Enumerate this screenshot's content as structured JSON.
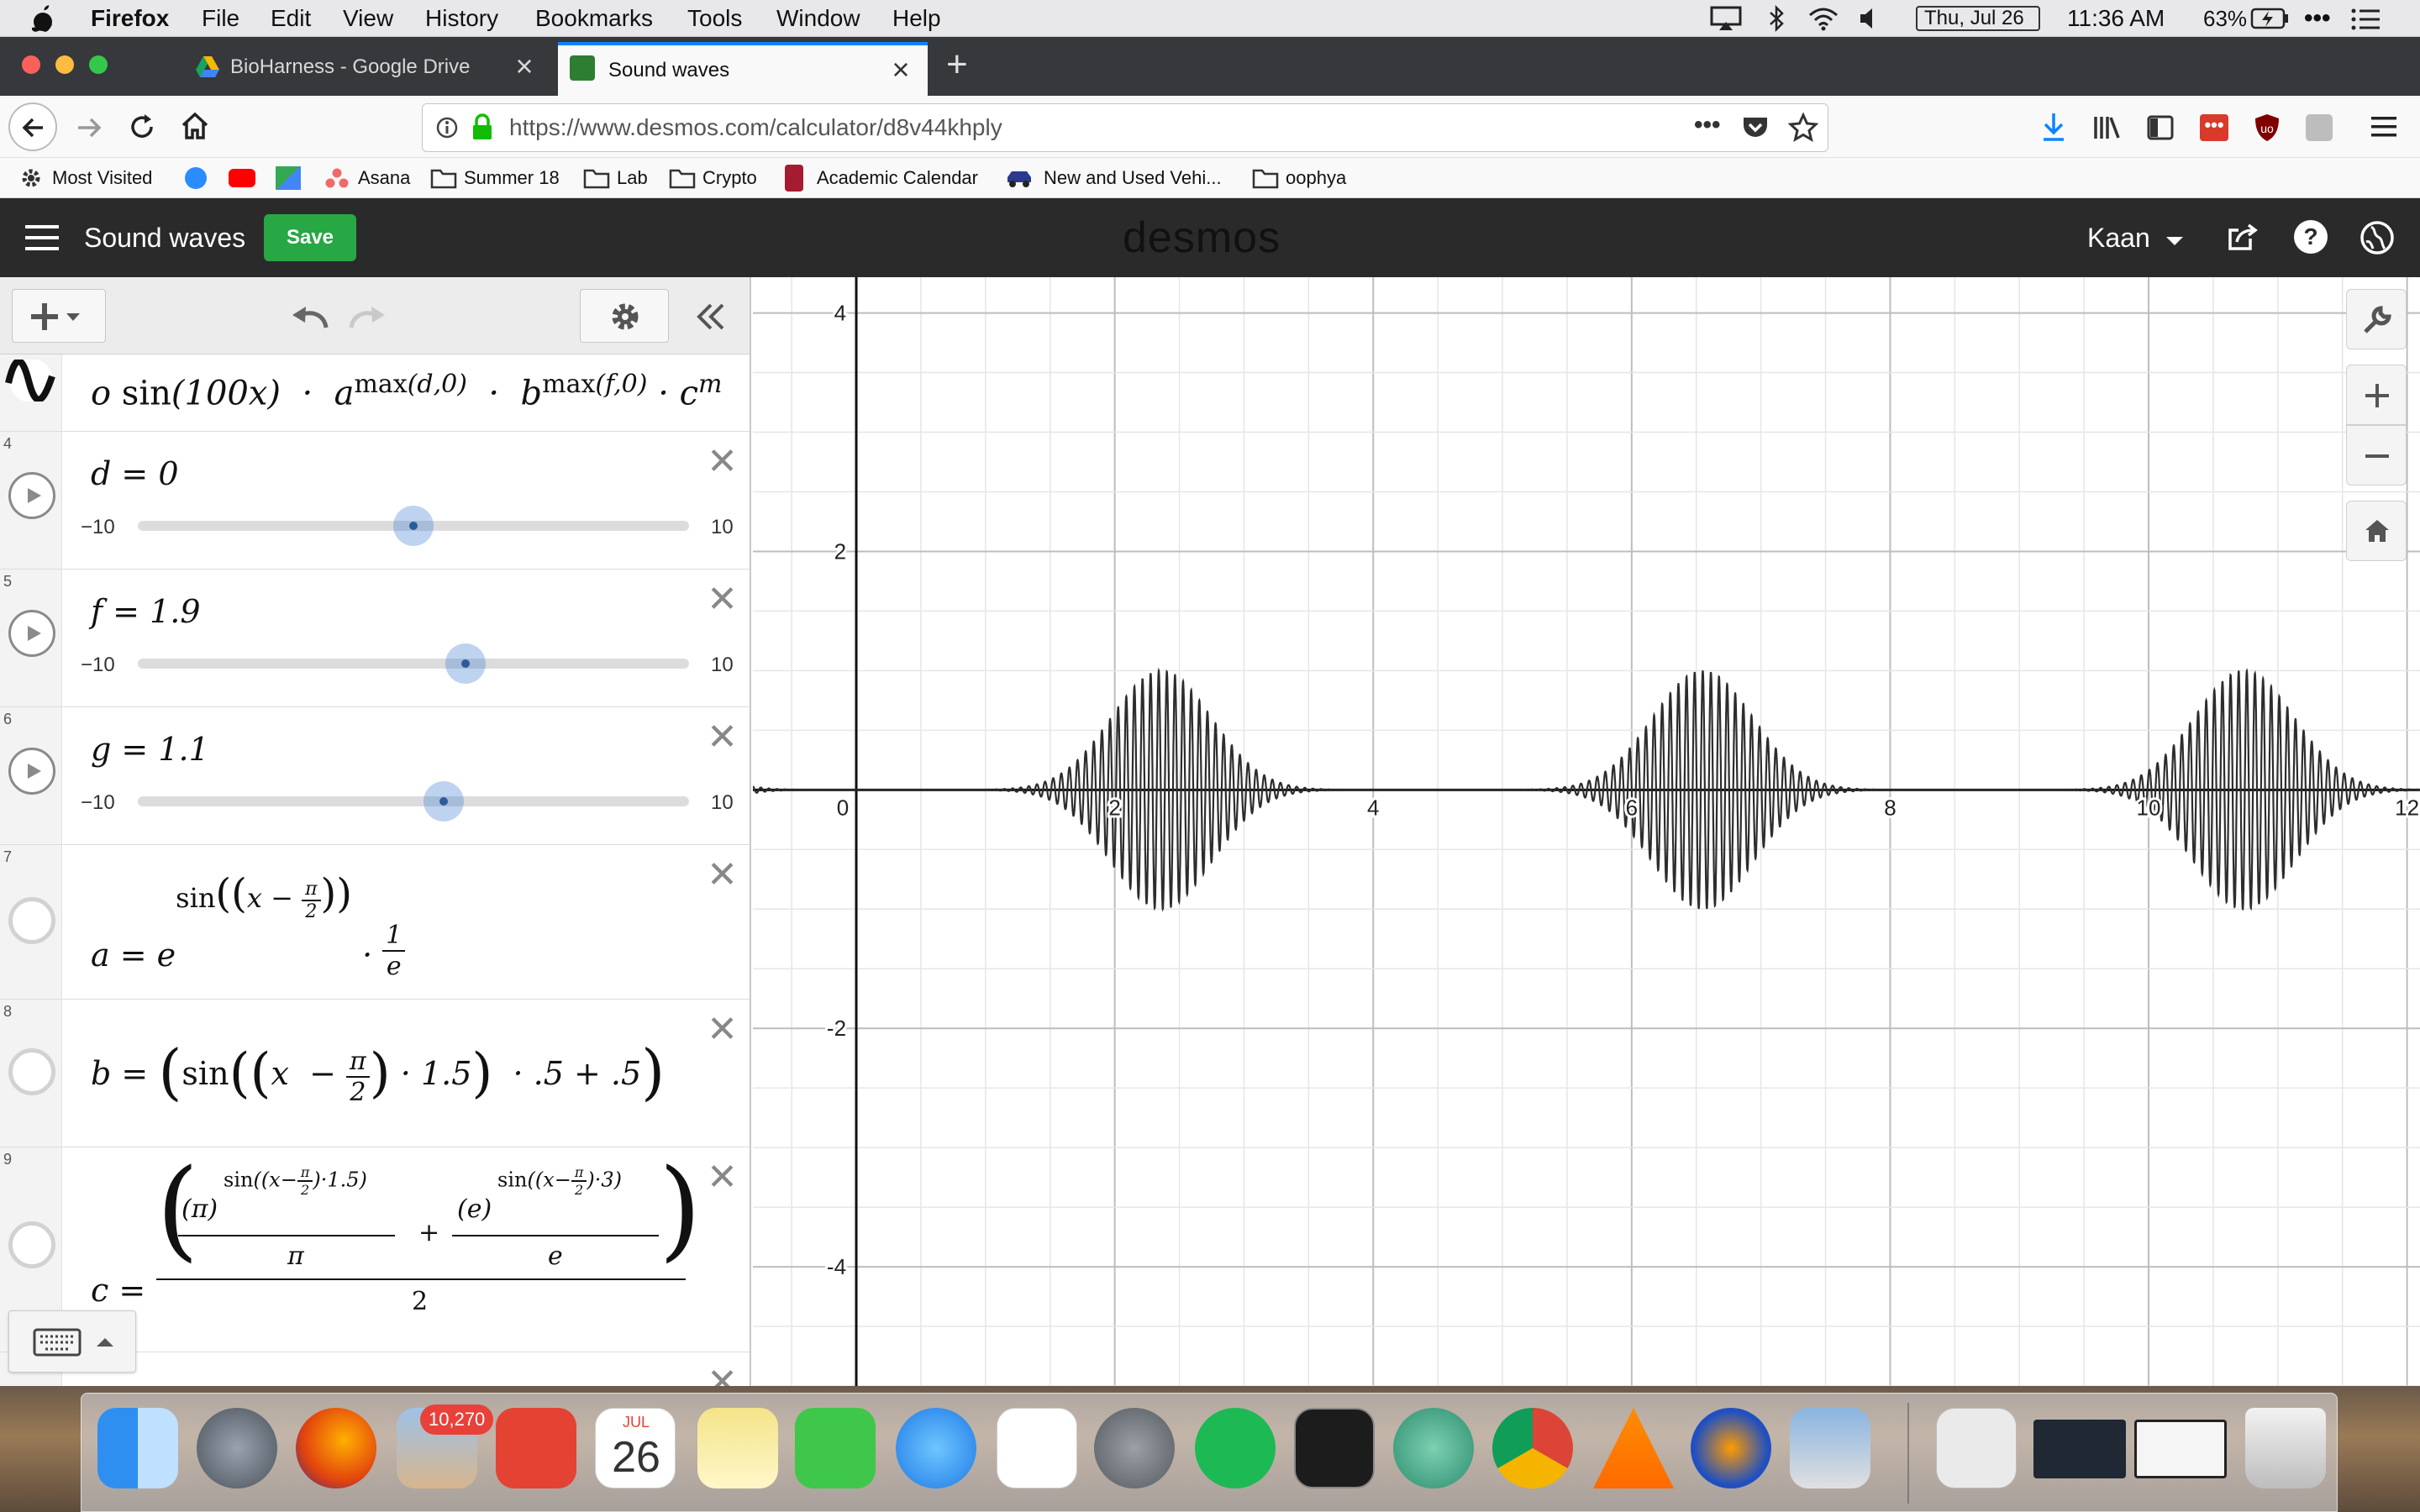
{
  "menubar": {
    "app": "Firefox",
    "items": [
      "File",
      "Edit",
      "View",
      "History",
      "Bookmarks",
      "Tools",
      "Window",
      "Help"
    ],
    "date": "Thu, Jul 26",
    "time": "11:36 AM",
    "battery": "63%"
  },
  "tabs": [
    {
      "title": "BioHarness - Google Drive",
      "active": false
    },
    {
      "title": "Sound waves",
      "active": true
    }
  ],
  "url": "https://www.desmos.com/calculator/d8v44khply",
  "bookmarks": [
    "Most Visited",
    "Asana",
    "Summer 18",
    "Lab",
    "Crypto",
    "Academic Calendar",
    "New and Used Vehi...",
    "oophya"
  ],
  "desmos": {
    "title": "Sound waves",
    "save_label": "Save",
    "logo": "desmos",
    "user": "Kaan"
  },
  "expressions": [
    {
      "index": "",
      "latex": "o sin(100x) · a^max(d,0) · b^max(f,0) · c^m"
    },
    {
      "index": "4",
      "label": "d = 0",
      "min": "−10",
      "max": "10",
      "value": 0
    },
    {
      "index": "5",
      "label": "f = 1.9",
      "min": "−10",
      "max": "10",
      "value": 1.9
    },
    {
      "index": "6",
      "label": "g = 1.1",
      "min": "−10",
      "max": "10",
      "value": 1.1
    },
    {
      "index": "7",
      "latex": "a = e^sin((x − π/2)) · 1/e"
    },
    {
      "index": "8",
      "latex": "b = (sin((x − π/2) · 1.5) · .5 + .5)"
    },
    {
      "index": "9",
      "latex": "c = ((π)^sin((x−π/2)·1.5)/π + (e)^sin((x−π/2)·3)/e) / 2"
    }
  ],
  "chart_data": {
    "type": "line",
    "title": "",
    "xlabel": "",
    "ylabel": "",
    "xlim": [
      -0.8,
      12.1
    ],
    "ylim": [
      -5,
      4.3
    ],
    "x_ticks": [
      "0",
      "2",
      "4",
      "6",
      "8",
      "10",
      "12"
    ],
    "y_ticks": [
      "4",
      "2",
      "-2",
      "-4"
    ],
    "grid": true,
    "series": [
      {
        "color": "#2d2d2d",
        "frequency": 100,
        "envelope_peaks": [
          {
            "x": 2.36,
            "amplitude": 1.0
          },
          {
            "x": 6.55,
            "amplitude": 1.0
          },
          {
            "x": 10.74,
            "amplitude": 1.0
          }
        ],
        "envelope_width": 0.55
      }
    ]
  },
  "dock": {
    "mail_badge": "10,270",
    "calendar_month": "JUL",
    "calendar_day": "26"
  }
}
